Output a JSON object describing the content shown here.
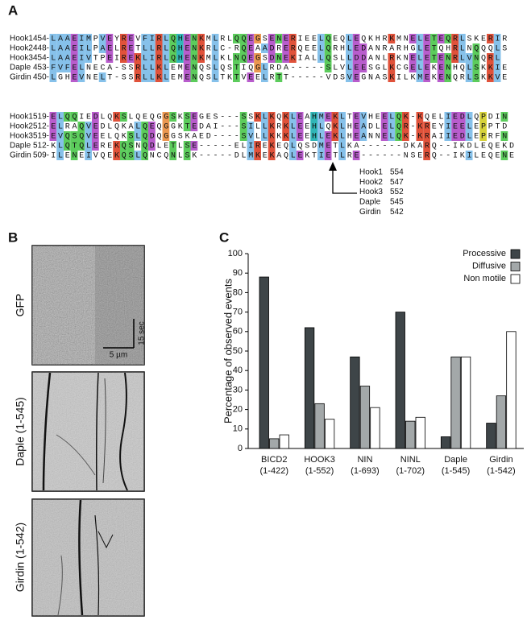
{
  "panel_labels": [
    "A",
    "B",
    "C"
  ],
  "panel_a": {
    "blocks": [
      {
        "rows": [
          {
            "name": "Hook1",
            "start": "454-",
            "seq": "LAAEIMPVEYREVFIRLQHENKMLRLQQEGSENERIEELQEQLEQKHRKMNELETEQRLSKERIR"
          },
          {
            "name": "Hook2",
            "start": "448-",
            "seq": "LAAEILPAELRETLLRLQHENKRLC-RQEAADRERQEELQRHLEDANRARHGLETQHRLNQQQLS"
          },
          {
            "name": "Hook3",
            "start": "454-",
            "seq": "LAAEIVTPEIREKLIRLQHENKMLKLNQEGSDNEKIALLQSLLDDANLRKNELETENRLVNQRL"
          },
          {
            "name": "Daple",
            "start": "453-",
            "seq": "FVFELNECA-SSRLLKLEMENQSLQSTIQGLRDA-----SLVLEESGLKCGELEKENHQLSKKIE"
          },
          {
            "name": "Girdin",
            "start": "450-",
            "seq": "LGHEVNELT-SSRLLKLEMENQSLTKTVEELRTT-----VDSVEGNASKILKMEKENQRLSKKVE"
          }
        ]
      },
      {
        "rows": [
          {
            "name": "Hook1",
            "start": "519-",
            "seq": "ELQQIEDLQKSLQEQGGSKSEGES---SSKLKQKLEAHMEKLTEVHEELQK-KQELIEDLQPDIN"
          },
          {
            "name": "Hook2",
            "start": "512-",
            "seq": "ELRAQVEDLQKALQEQGGKTEDAI---SILLKRKLEEHLQKLHEADLELQR-KREYIEELEPPTD"
          },
          {
            "name": "Hook3",
            "start": "519-",
            "seq": "EVQSQVEELQKSLQDQGGSKAED----SVLLKKKLEEHLEKLHEANNELQK-KRAIIEDLEPRFN"
          },
          {
            "name": "Daple",
            "start": "512-",
            "seq": "KLQTQLEREKQSNQDLETLSE-----ELIREKEQLQSDMETLKA------DKARQ--IKDLEQEKD"
          },
          {
            "name": "Girdin",
            "start": "509-",
            "seq": "ILENEIVQEKQSLQNCQNLSK-----DLMKEKAQLEKTIETLRE------NSERQ--IKILEQENE"
          }
        ]
      }
    ],
    "annotation": [
      {
        "name": "Hook1",
        "position": 554
      },
      {
        "name": "Hook2",
        "position": 547
      },
      {
        "name": "Hook3",
        "position": 552
      },
      {
        "name": "Daple",
        "position": 545
      },
      {
        "name": "Girdin",
        "position": 542
      }
    ]
  },
  "panel_b": {
    "kymographs": [
      "GFP",
      "Daple (1-545)",
      "Girdin (1-542)"
    ],
    "scale_time": "15 sec",
    "scale_distance": "5 µm"
  },
  "chart_data": {
    "type": "bar",
    "y_label": "Percentage of observed events",
    "categories": [
      "BICD2",
      "HOOK3",
      "NIN",
      "NINL",
      "Daple",
      "Girdin"
    ],
    "category_ranges": [
      "(1-422)",
      "(1-552)",
      "(1-693)",
      "(1-702)",
      "(1-545)",
      "(1-542)"
    ],
    "series": [
      {
        "name": "Processive",
        "color": "#3e4548",
        "values": [
          88,
          62,
          47,
          70,
          6,
          13
        ]
      },
      {
        "name": "Diffusive",
        "color": "#a3a8a9",
        "values": [
          5,
          23,
          32,
          14,
          47,
          27
        ]
      },
      {
        "name": "Non motile",
        "color": "#ffffff",
        "values": [
          7,
          15,
          21,
          16,
          47,
          60
        ]
      }
    ],
    "ylim": [
      0,
      100
    ],
    "yticks": [
      0,
      10,
      20,
      30,
      40,
      50,
      60,
      70,
      80,
      90,
      100
    ],
    "legend": "upper right"
  }
}
